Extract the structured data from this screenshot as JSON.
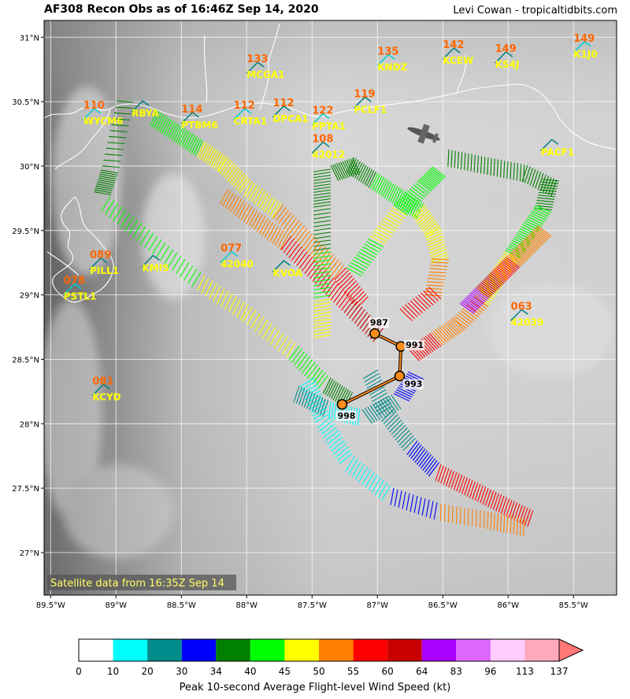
{
  "header": {
    "title": "AF308 Recon Obs as of 16:46Z Sep 14, 2020",
    "credit": "Levi Cowan - tropicaltidbits.com"
  },
  "satellite_note": "Satellite data from 16:35Z Sep 14",
  "axes": {
    "x_ticks": [
      "89.5°W",
      "89°W",
      "88.5°W",
      "88°W",
      "87.5°W",
      "87°W",
      "86.5°W",
      "86°W",
      "85.5°W"
    ],
    "y_ticks": [
      "31°N",
      "30.5°N",
      "30°N",
      "29.5°N",
      "29°N",
      "28.5°N",
      "28°N",
      "27.5°N",
      "27°N"
    ],
    "lon_range": [
      -89.55,
      -85.17
    ],
    "lat_range": [
      26.67,
      31.13
    ]
  },
  "stations": [
    {
      "id": "WYCM6",
      "wind": "110",
      "lon": -89.25,
      "lat": 30.36
    },
    {
      "id": "RBYA",
      "wind": "",
      "lon": -88.88,
      "lat": 30.42
    },
    {
      "id": "PTBM6",
      "wind": "114",
      "lon": -88.5,
      "lat": 30.33
    },
    {
      "id": "CRTA1",
      "wind": "112",
      "lon": -88.1,
      "lat": 30.36
    },
    {
      "id": "MCGA1",
      "wind": "133",
      "lon": -88.0,
      "lat": 30.72
    },
    {
      "id": "DPCA1",
      "wind": "112",
      "lon": -87.8,
      "lat": 30.38
    },
    {
      "id": "PPTA1",
      "wind": "122",
      "lon": -87.5,
      "lat": 30.32
    },
    {
      "id": "42012",
      "wind": "108",
      "lon": -87.5,
      "lat": 30.1
    },
    {
      "id": "PCLF1",
      "wind": "119",
      "lon": -87.18,
      "lat": 30.45
    },
    {
      "id": "KNDZ",
      "wind": "135",
      "lon": -87.0,
      "lat": 30.78
    },
    {
      "id": "KCEW",
      "wind": "142",
      "lon": -86.5,
      "lat": 30.83
    },
    {
      "id": "KS4J",
      "wind": "149",
      "lon": -86.1,
      "lat": 30.8
    },
    {
      "id": "K1J0",
      "wind": "149",
      "lon": -85.5,
      "lat": 30.88
    },
    {
      "id": "PACF1",
      "wind": "",
      "lon": -85.75,
      "lat": 30.12
    },
    {
      "id": "KMIS",
      "wind": "",
      "lon": -88.8,
      "lat": 29.22
    },
    {
      "id": "42040",
      "wind": "077",
      "lon": -88.2,
      "lat": 29.25
    },
    {
      "id": "KVOA",
      "wind": "",
      "lon": -87.8,
      "lat": 29.18
    },
    {
      "id": "PILL1",
      "wind": "089",
      "lon": -89.2,
      "lat": 29.2
    },
    {
      "id": "PSTL1",
      "wind": "078",
      "lon": -89.4,
      "lat": 29.0
    },
    {
      "id": "KCYD",
      "wind": "081",
      "lon": -89.18,
      "lat": 28.22
    },
    {
      "id": "42039",
      "wind": "063",
      "lon": -85.98,
      "lat": 28.8
    }
  ],
  "pressure_obs": [
    {
      "label": "987",
      "lon": -87.02,
      "lat": 28.7
    },
    {
      "label": "991",
      "lon": -86.82,
      "lat": 28.6
    },
    {
      "label": "993",
      "lon": -86.83,
      "lat": 28.37
    },
    {
      "label": "998",
      "lon": -87.27,
      "lat": 28.15
    }
  ],
  "colorbar": {
    "label": "Peak 10-second Average Flight-level Wind Speed (kt)",
    "ticks": [
      "0",
      "10",
      "20",
      "30",
      "34",
      "40",
      "45",
      "50",
      "55",
      "60",
      "64",
      "83",
      "96",
      "113",
      "137"
    ],
    "colors": [
      "#ffffff",
      "#00ffff",
      "#008b8b",
      "#0000ff",
      "#008000",
      "#00ff00",
      "#ffff00",
      "#ff8000",
      "#ff0000",
      "#c80000",
      "#aa00ff",
      "#dd66ff",
      "#ffccff",
      "#ffaabb",
      "#ff7777"
    ]
  }
}
